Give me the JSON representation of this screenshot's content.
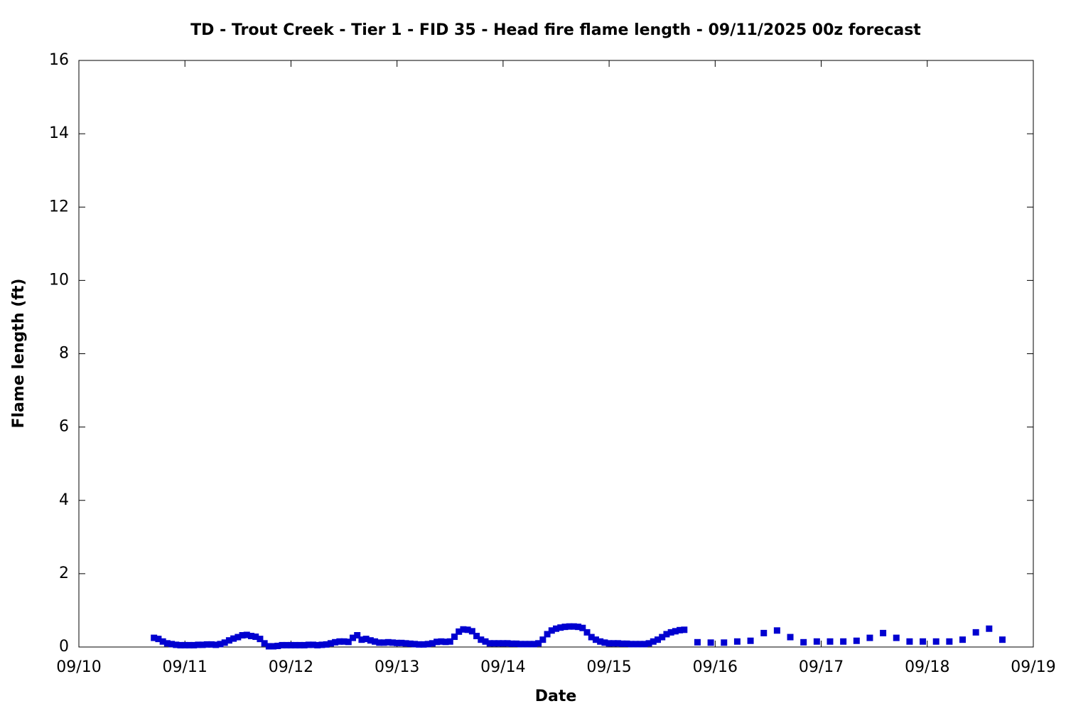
{
  "chart_data": {
    "type": "scatter",
    "title": "TD - Trout Creek - Tier 1 - FID 35 - Head fire flame length - 09/11/2025 00z forecast",
    "x_label": "Date",
    "y_label": "Flame length (ft)",
    "color": "#0000d0",
    "grid": false,
    "xlim": [
      0,
      216
    ],
    "xticks": [
      {
        "value": 0,
        "label": "09/10"
      },
      {
        "value": 24,
        "label": "09/11"
      },
      {
        "value": 48,
        "label": "09/12"
      },
      {
        "value": 72,
        "label": "09/13"
      },
      {
        "value": 96,
        "label": "09/14"
      },
      {
        "value": 120,
        "label": "09/15"
      },
      {
        "value": 144,
        "label": "09/16"
      },
      {
        "value": 168,
        "label": "09/17"
      },
      {
        "value": 192,
        "label": "09/18"
      },
      {
        "value": 216,
        "label": "09/19"
      }
    ],
    "ylim": [
      0,
      16
    ],
    "yticks": [
      0,
      2,
      4,
      6,
      8,
      10,
      12,
      14,
      16
    ],
    "x": [
      17,
      18,
      19,
      20,
      21,
      22,
      23,
      24,
      25,
      26,
      27,
      28,
      29,
      30,
      31,
      32,
      33,
      34,
      35,
      36,
      37,
      38,
      39,
      40,
      41,
      42,
      43,
      44,
      45,
      46,
      47,
      48,
      49,
      50,
      51,
      52,
      53,
      54,
      55,
      56,
      57,
      58,
      59,
      60,
      61,
      62,
      63,
      64,
      65,
      66,
      67,
      68,
      69,
      70,
      71,
      72,
      73,
      74,
      75,
      76,
      77,
      78,
      79,
      80,
      81,
      82,
      83,
      84,
      85,
      86,
      87,
      88,
      89,
      90,
      91,
      92,
      93,
      94,
      95,
      96,
      97,
      98,
      99,
      100,
      101,
      102,
      103,
      104,
      105,
      106,
      107,
      108,
      109,
      110,
      111,
      112,
      113,
      114,
      115,
      116,
      117,
      118,
      119,
      120,
      121,
      122,
      123,
      124,
      125,
      126,
      127,
      128,
      129,
      130,
      131,
      132,
      133,
      134,
      135,
      136,
      137,
      140,
      143,
      146,
      149,
      152,
      155,
      158,
      161,
      164,
      167,
      170,
      173,
      176,
      179,
      182,
      185,
      188,
      191,
      194,
      197,
      200,
      203,
      206,
      209
    ],
    "values": [
      0.25,
      0.22,
      0.15,
      0.1,
      0.08,
      0.06,
      0.05,
      0.05,
      0.05,
      0.05,
      0.06,
      0.06,
      0.07,
      0.07,
      0.06,
      0.08,
      0.12,
      0.18,
      0.23,
      0.27,
      0.32,
      0.33,
      0.3,
      0.28,
      0.22,
      0.1,
      0.02,
      0.02,
      0.03,
      0.05,
      0.05,
      0.05,
      0.05,
      0.05,
      0.05,
      0.06,
      0.06,
      0.05,
      0.06,
      0.07,
      0.1,
      0.13,
      0.15,
      0.15,
      0.14,
      0.25,
      0.32,
      0.2,
      0.22,
      0.18,
      0.15,
      0.12,
      0.12,
      0.13,
      0.12,
      0.11,
      0.11,
      0.1,
      0.09,
      0.08,
      0.07,
      0.07,
      0.08,
      0.1,
      0.14,
      0.15,
      0.14,
      0.15,
      0.28,
      0.42,
      0.48,
      0.47,
      0.43,
      0.3,
      0.2,
      0.15,
      0.1,
      0.1,
      0.1,
      0.1,
      0.1,
      0.09,
      0.09,
      0.08,
      0.08,
      0.08,
      0.08,
      0.1,
      0.2,
      0.35,
      0.45,
      0.5,
      0.53,
      0.55,
      0.56,
      0.56,
      0.55,
      0.52,
      0.4,
      0.27,
      0.2,
      0.15,
      0.12,
      0.1,
      0.1,
      0.1,
      0.09,
      0.09,
      0.08,
      0.08,
      0.08,
      0.08,
      0.1,
      0.15,
      0.2,
      0.27,
      0.35,
      0.4,
      0.43,
      0.46,
      0.47,
      0.13,
      0.12,
      0.12,
      0.15,
      0.17,
      0.38,
      0.45,
      0.27,
      0.13,
      0.15,
      0.15,
      0.15,
      0.17,
      0.25,
      0.38,
      0.25,
      0.15,
      0.15,
      0.15,
      0.15,
      0.2,
      0.4,
      0.5,
      0.2
    ]
  }
}
